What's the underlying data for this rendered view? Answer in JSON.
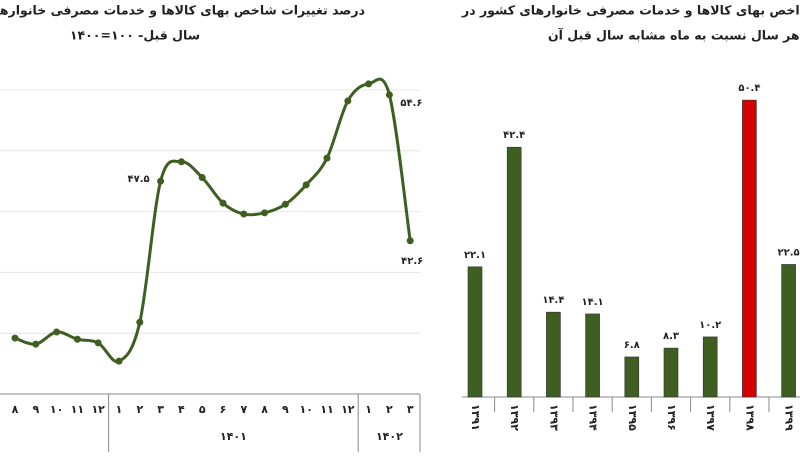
{
  "chart_data": [
    {
      "type": "line",
      "title": [
        "درصد تغییرات شاخص بهای کالاها و خدمات مصرفی خانوارها نس",
        "سال قبل- ۱۰۰=۱۴۰۰"
      ],
      "groups": [
        {
          "label": null,
          "categories": [
            "۸",
            "۹",
            "۱۰",
            "۱۱",
            "۱۲"
          ]
        },
        {
          "label": "۱۴۰۱",
          "categories": [
            "۱",
            "۲",
            "۳",
            "۴",
            "۵",
            "۶",
            "۷",
            "۸",
            "۹",
            "۱۰",
            "۱۱",
            "۱۲"
          ]
        },
        {
          "label": "۱۴۰۲",
          "categories": [
            "۱",
            "۲",
            "۳"
          ]
        }
      ],
      "series": [
        {
          "color": "#3f5f22",
          "values": [
            34.6,
            34.1,
            35.1,
            34.5,
            34.2,
            32.7,
            35.9,
            47.5,
            49.1,
            47.8,
            45.7,
            44.8,
            44.9,
            45.6,
            47.2,
            49.4,
            54.1,
            55.5,
            54.6,
            42.6
          ],
          "value_labels": [
            null,
            null,
            null,
            null,
            null,
            null,
            null,
            "۴۷.۵",
            null,
            null,
            null,
            null,
            null,
            null,
            null,
            null,
            null,
            null,
            "۵۴.۶",
            "۴۲.۶"
          ]
        }
      ],
      "ylim": [
        30,
        55
      ],
      "yticks": [
        30,
        35,
        40,
        45,
        50,
        55
      ],
      "grid": true
    },
    {
      "type": "bar",
      "title": [
        "اخص بهای کالاها و خدمات مصرفی خانوارهای کشور در",
        "رداد هر سال نسبت به ماه مشابه سال قبل آن"
      ],
      "categories": [
        "۱۳۹۱",
        "۱۳۹۲",
        "۱۳۹۳",
        "۱۳۹۴",
        "۱۳۹۵",
        "۱۳۹۶",
        "۱۳۹۷",
        "۱۳۹۸",
        "۱۳۹۹"
      ],
      "values": [
        22.1,
        42.4,
        14.4,
        14.1,
        6.8,
        8.3,
        10.2,
        50.4,
        22.5
      ],
      "value_labels": [
        "۲۲.۱",
        "۴۲.۴",
        "۱۴.۴",
        "۱۴.۱",
        "۶.۸",
        "۸.۳",
        "۱۰.۲",
        "۵۰.۴",
        "۲۲.۵"
      ],
      "colors": [
        "#3f5f22",
        "#3f5f22",
        "#3f5f22",
        "#3f5f22",
        "#3f5f22",
        "#3f5f22",
        "#3f5f22",
        "#d40000",
        "#3f5f22"
      ],
      "ylim": [
        0,
        55
      ]
    }
  ]
}
